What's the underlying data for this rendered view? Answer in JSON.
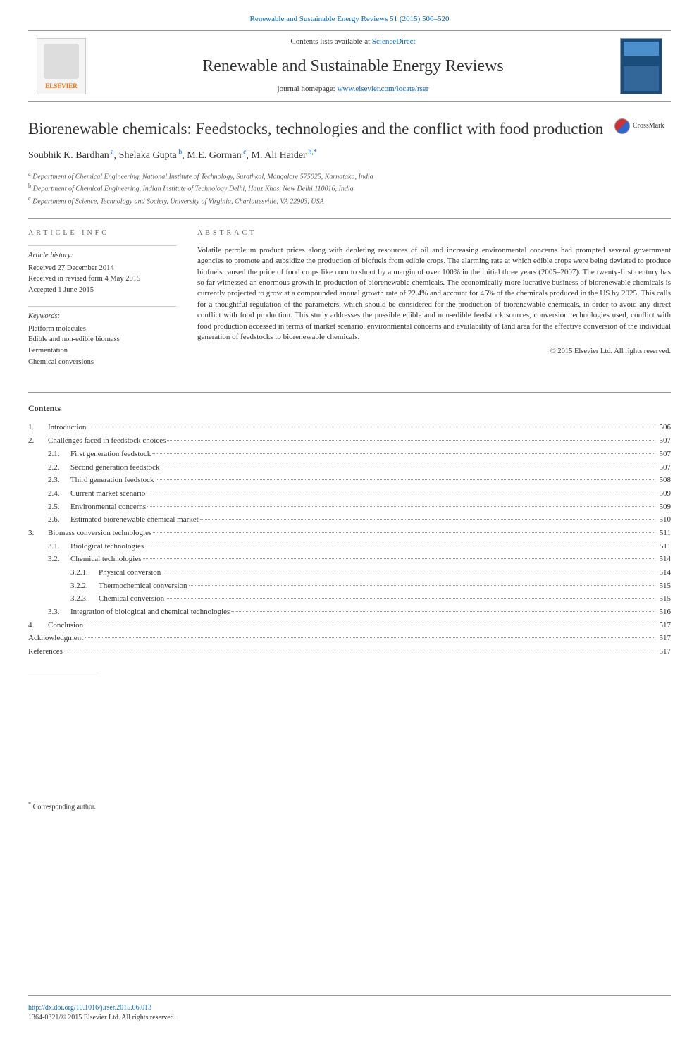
{
  "header": {
    "citation": "Renewable and Sustainable Energy Reviews 51 (2015) 506–520",
    "contents_available": "Contents lists available at ",
    "sciencedirect": "ScienceDirect",
    "journal_name": "Renewable and Sustainable Energy Reviews",
    "homepage_label": "journal homepage: ",
    "homepage_url": "www.elsevier.com/locate/rser",
    "elsevier_label": "ELSEVIER"
  },
  "article": {
    "title": "Biorenewable chemicals: Feedstocks, technologies and the conflict with food production",
    "crossmark": "CrossMark",
    "authors_html": "Soubhik K. Bardhan",
    "author1": "Soubhik K. Bardhan",
    "author1_aff": "a",
    "author2": "Shelaka Gupta",
    "author2_aff": "b",
    "author3": "M.E. Gorman",
    "author3_aff": "c",
    "author4": "M. Ali Haider",
    "author4_aff": "b,",
    "corresp_mark": "*",
    "aff_a": "Department of Chemical Engineering, National Institute of Technology, Surathkal, Mangalore 575025, Karnataka, India",
    "aff_b": "Department of Chemical Engineering, Indian Institute of Technology Delhi, Hauz Khas, New Delhi 110016, India",
    "aff_c": "Department of Science, Technology and Society, University of Virginia, Charlottesville, VA 22903, USA"
  },
  "meta": {
    "info_heading": "article info",
    "history_label": "Article history:",
    "received": "Received 27 December 2014",
    "revised": "Received in revised form 4 May 2015",
    "accepted": "Accepted 1 June 2015",
    "keywords_label": "Keywords:",
    "keywords": [
      "Platform molecules",
      "Edible and non-edible biomass",
      "Fermentation",
      "Chemical conversions"
    ]
  },
  "abstract": {
    "heading": "abstract",
    "text": "Volatile petroleum product prices along with depleting resources of oil and increasing environmental concerns had prompted several government agencies to promote and subsidize the production of biofuels from edible crops. The alarming rate at which edible crops were being deviated to produce biofuels caused the price of food crops like corn to shoot by a margin of over 100% in the initial three years (2005–2007). The twenty-first century has so far witnessed an enormous growth in production of biorenewable chemicals. The economically more lucrative business of biorenewable chemicals is currently projected to grow at a compounded annual growth rate of 22.4% and account for 45% of the chemicals produced in the US by 2025. This calls for a thoughtful regulation of the parameters, which should be considered for the production of biorenewable chemicals, in order to avoid any direct conflict with food production. This study addresses the possible edible and non-edible feedstock sources, conversion technologies used, conflict with food production accessed in terms of market scenario, environmental concerns and availability of land area for the effective conversion of the individual generation of feedstocks to biorenewable chemicals.",
    "copyright": "© 2015 Elsevier Ltd. All rights reserved."
  },
  "contents": {
    "heading": "Contents",
    "items": [
      {
        "level": 0,
        "num": "1.",
        "title": "Introduction",
        "page": "506"
      },
      {
        "level": 0,
        "num": "2.",
        "title": "Challenges faced in feedstock choices",
        "page": "507"
      },
      {
        "level": 1,
        "num": "2.1.",
        "title": "First generation feedstock",
        "page": "507"
      },
      {
        "level": 1,
        "num": "2.2.",
        "title": "Second generation feedstock",
        "page": "507"
      },
      {
        "level": 1,
        "num": "2.3.",
        "title": "Third generation feedstock",
        "page": "508"
      },
      {
        "level": 1,
        "num": "2.4.",
        "title": "Current market scenario",
        "page": "509"
      },
      {
        "level": 1,
        "num": "2.5.",
        "title": "Environmental concerns",
        "page": "509"
      },
      {
        "level": 1,
        "num": "2.6.",
        "title": "Estimated biorenewable chemical market",
        "page": "510"
      },
      {
        "level": 0,
        "num": "3.",
        "title": "Biomass conversion technologies",
        "page": "511"
      },
      {
        "level": 1,
        "num": "3.1.",
        "title": "Biological technologies",
        "page": "511"
      },
      {
        "level": 1,
        "num": "3.2.",
        "title": "Chemical technologies",
        "page": "514"
      },
      {
        "level": 2,
        "num": "3.2.1.",
        "title": "Physical conversion",
        "page": "514"
      },
      {
        "level": 2,
        "num": "3.2.2.",
        "title": "Thermochemical conversion",
        "page": "515"
      },
      {
        "level": 2,
        "num": "3.2.3.",
        "title": "Chemical conversion",
        "page": "515"
      },
      {
        "level": 1,
        "num": "3.3.",
        "title": "Integration of biological and chemical technologies",
        "page": "516"
      },
      {
        "level": 0,
        "num": "4.",
        "title": "Conclusion",
        "page": "517"
      },
      {
        "level": 0,
        "num": "",
        "title": "Acknowledgment",
        "page": "517"
      },
      {
        "level": 0,
        "num": "",
        "title": "References",
        "page": "517"
      }
    ]
  },
  "footer": {
    "corresp": "Corresponding author.",
    "corresp_mark": "*",
    "doi": "http://dx.doi.org/10.1016/j.rser.2015.06.013",
    "issn": "1364-0321/© 2015 Elsevier Ltd. All rights reserved."
  }
}
